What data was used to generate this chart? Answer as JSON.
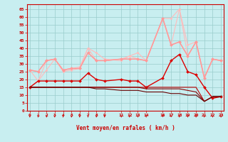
{
  "x": [
    0,
    1,
    2,
    3,
    4,
    5,
    6,
    7,
    8,
    9,
    11,
    12,
    13,
    14,
    16,
    17,
    18,
    19,
    20,
    21,
    22,
    23
  ],
  "series": [
    {
      "name": "lightest_upper1",
      "y": [
        15,
        19,
        26,
        33,
        25,
        26,
        27,
        40,
        37,
        33,
        32,
        35,
        37,
        32,
        59,
        59,
        65,
        42,
        44,
        21,
        33,
        32
      ],
      "color": "#ffbbbb",
      "lw": 0.8,
      "marker": "D",
      "ms": 1.5
    },
    {
      "name": "lightest_upper2",
      "y": [
        26,
        19,
        32,
        33,
        26,
        27,
        28,
        40,
        32,
        32,
        33,
        35,
        33,
        32,
        59,
        42,
        65,
        35,
        44,
        21,
        33,
        32
      ],
      "color": "#ffbbbb",
      "lw": 0.8,
      "marker": "D",
      "ms": 1.5
    },
    {
      "name": "medium_upper1",
      "y": [
        26,
        25,
        32,
        33,
        26,
        27,
        27,
        37,
        32,
        32,
        33,
        33,
        33,
        32,
        59,
        42,
        44,
        35,
        44,
        21,
        33,
        32
      ],
      "color": "#ffaaaa",
      "lw": 1.0,
      "marker": "D",
      "ms": 2.0
    },
    {
      "name": "medium_upper2",
      "y": [
        26,
        25,
        32,
        33,
        26,
        27,
        27,
        37,
        32,
        32,
        33,
        33,
        33,
        32,
        59,
        42,
        44,
        35,
        44,
        21,
        33,
        32
      ],
      "color": "#ff9999",
      "lw": 1.0,
      "marker": "D",
      "ms": 2.0
    },
    {
      "name": "red_spiky",
      "y": [
        15,
        19,
        19,
        19,
        19,
        19,
        19,
        24,
        20,
        19,
        20,
        19,
        19,
        15,
        21,
        32,
        36,
        25,
        23,
        15,
        8,
        9
      ],
      "color": "#dd0000",
      "lw": 1.0,
      "marker": "D",
      "ms": 2.0
    },
    {
      "name": "flat_red1",
      "y": [
        15,
        15,
        15,
        15,
        15,
        15,
        15,
        15,
        15,
        15,
        15,
        15,
        15,
        15,
        15,
        15,
        15,
        15,
        15,
        6,
        9,
        9
      ],
      "color": "#bb0000",
      "lw": 0.8,
      "marker": null,
      "ms": 0
    },
    {
      "name": "flat_red2",
      "y": [
        15,
        15,
        15,
        15,
        15,
        15,
        15,
        15,
        15,
        15,
        15,
        15,
        15,
        14,
        14,
        14,
        14,
        13,
        12,
        6,
        9,
        9
      ],
      "color": "#880000",
      "lw": 0.8,
      "marker": null,
      "ms": 0
    },
    {
      "name": "flat_red3",
      "y": [
        15,
        15,
        15,
        15,
        15,
        15,
        15,
        15,
        14,
        14,
        13,
        13,
        13,
        12,
        12,
        11,
        11,
        10,
        10,
        6,
        9,
        9
      ],
      "color": "#660000",
      "lw": 0.8,
      "marker": null,
      "ms": 0
    }
  ],
  "xlabel": "Vent moyen/en rafales ( km/h )",
  "xlim": [
    -0.3,
    23.3
  ],
  "ylim": [
    0,
    68
  ],
  "yticks": [
    0,
    5,
    10,
    15,
    20,
    25,
    30,
    35,
    40,
    45,
    50,
    55,
    60,
    65
  ],
  "xticks": [
    0,
    1,
    2,
    3,
    4,
    5,
    6,
    7,
    8,
    9,
    11,
    12,
    13,
    14,
    16,
    17,
    18,
    19,
    20,
    21,
    22,
    23
  ],
  "xtick_labels": [
    "0",
    "1",
    "2",
    "3",
    "4",
    "5",
    "6",
    "7",
    "8",
    "9",
    "11",
    "12",
    "13",
    "14",
    "16",
    "17",
    "18",
    "19",
    "20",
    "21",
    "22",
    "23"
  ],
  "bg_color": "#c8eef0",
  "grid_color": "#99cccc",
  "text_color": "#cc0000",
  "arrow_color": "#cc0000"
}
